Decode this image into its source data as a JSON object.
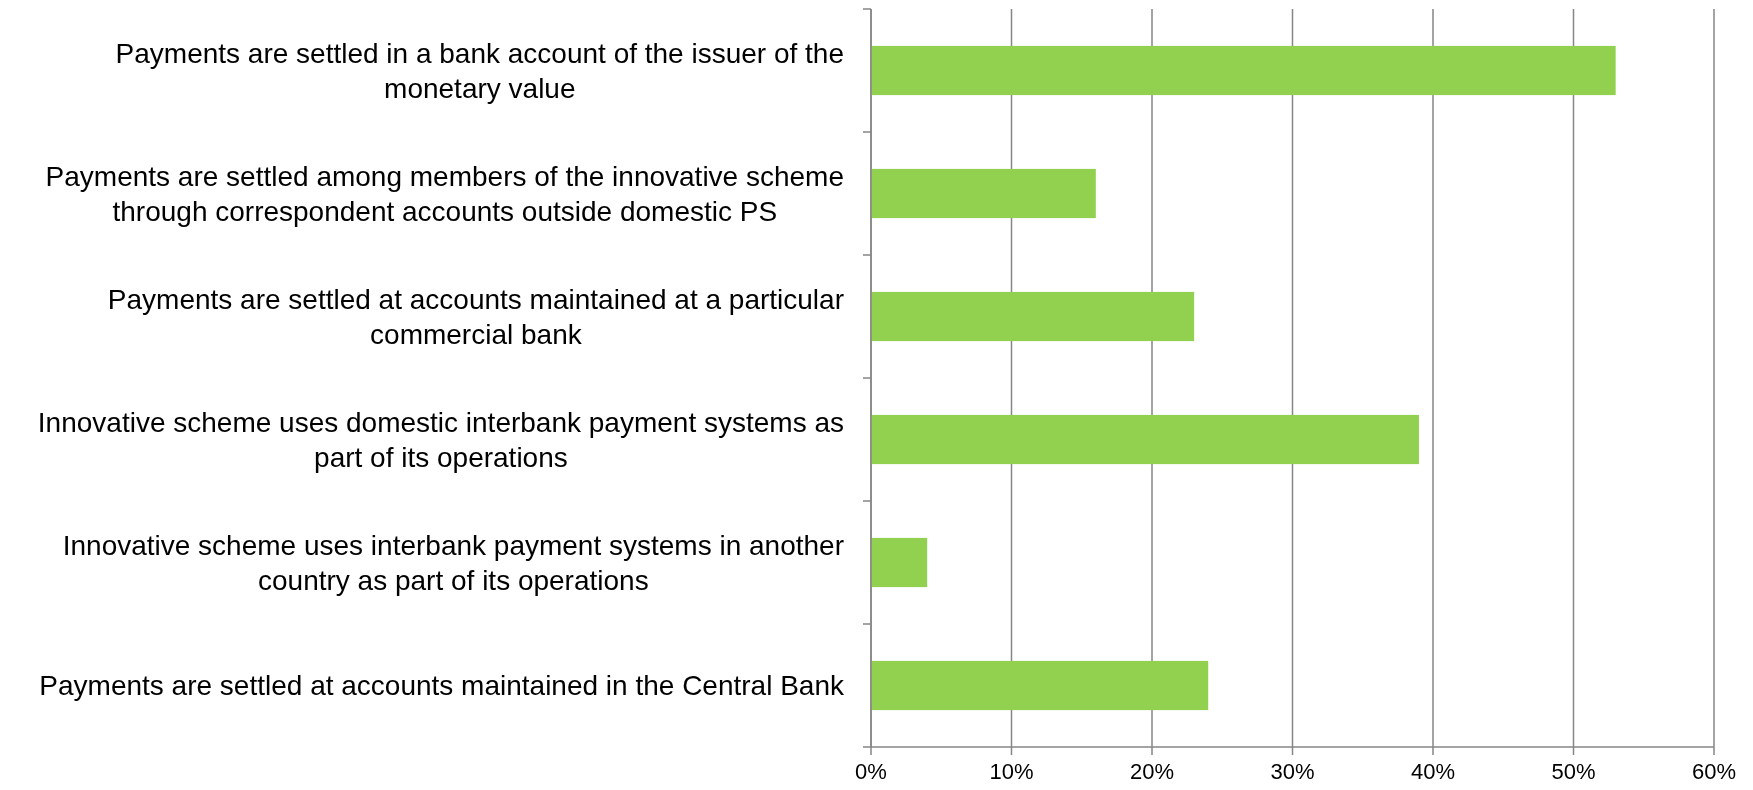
{
  "chart_data": {
    "type": "bar",
    "orientation": "horizontal",
    "categories": [
      "Payments are settled in a bank account of the issuer of the monetary value",
      "Payments are settled among members of the innovative scheme through correspondent accounts outside domestic PS",
      "Payments are settled at accounts maintained at a particular commercial bank",
      "Innovative scheme uses domestic interbank payment systems as part of its operations",
      "Innovative scheme uses interbank payment systems in another country as part of its operations",
      "Payments are settled at accounts maintained in the Central Bank"
    ],
    "values": [
      53,
      16,
      23,
      39,
      4,
      24
    ],
    "color": "#92d050",
    "xlim": [
      0,
      60
    ],
    "xticks": [
      {
        "value": 0,
        "label": "0%"
      },
      {
        "value": 10,
        "label": "10%"
      },
      {
        "value": 20,
        "label": "20%"
      },
      {
        "value": 30,
        "label": "30%"
      },
      {
        "value": 40,
        "label": "40%"
      },
      {
        "value": 50,
        "label": "50%"
      },
      {
        "value": 60,
        "label": "60%"
      }
    ],
    "grid": "x"
  }
}
